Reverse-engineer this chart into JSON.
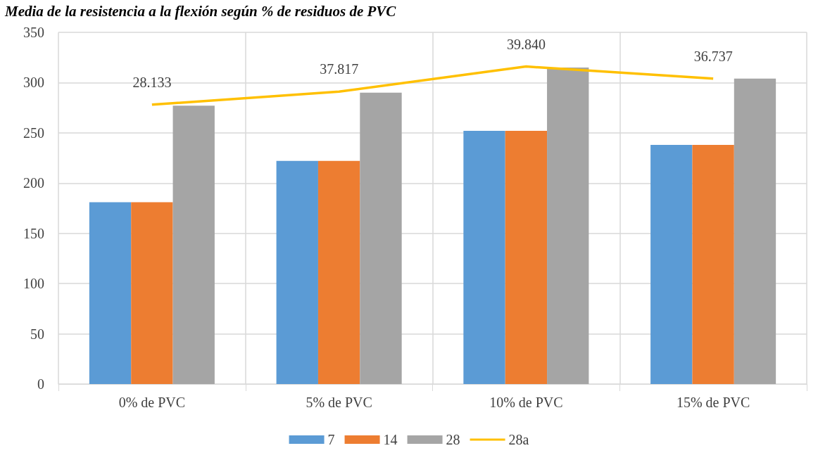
{
  "chart_data": {
    "type": "bar",
    "title": "Media de la resistencia a la flexión según % de residuos de PVC",
    "categories": [
      "0% de PVC",
      "5% de PVC",
      "10% de PVC",
      "15% de PVC"
    ],
    "series": [
      {
        "name": "7",
        "color": "#5b9bd5",
        "values": [
          181,
          222,
          252,
          238
        ]
      },
      {
        "name": "14",
        "color": "#ed7d31",
        "values": [
          181,
          222,
          252,
          238
        ]
      },
      {
        "name": "28",
        "color": "#a5a5a5",
        "values": [
          277,
          290,
          315,
          304
        ]
      },
      {
        "name": "28a",
        "type": "line",
        "color": "#ffc000",
        "values": [
          278,
          291,
          316,
          304
        ]
      }
    ],
    "annotations": [
      {
        "text": "28.133",
        "x": "0% de PVC",
        "y": 278
      },
      {
        "text": "37.817",
        "x": "5% de PVC",
        "y": 291
      },
      {
        "text": "39.840",
        "x": "10% de PVC",
        "y": 316
      },
      {
        "text": "36.737",
        "x": "15% de PVC",
        "y": 304
      }
    ],
    "ylim": [
      0,
      350
    ],
    "yticks": [
      0,
      50,
      100,
      150,
      200,
      250,
      300,
      350
    ],
    "grid": true,
    "legend": "bottom",
    "marker": "none"
  }
}
